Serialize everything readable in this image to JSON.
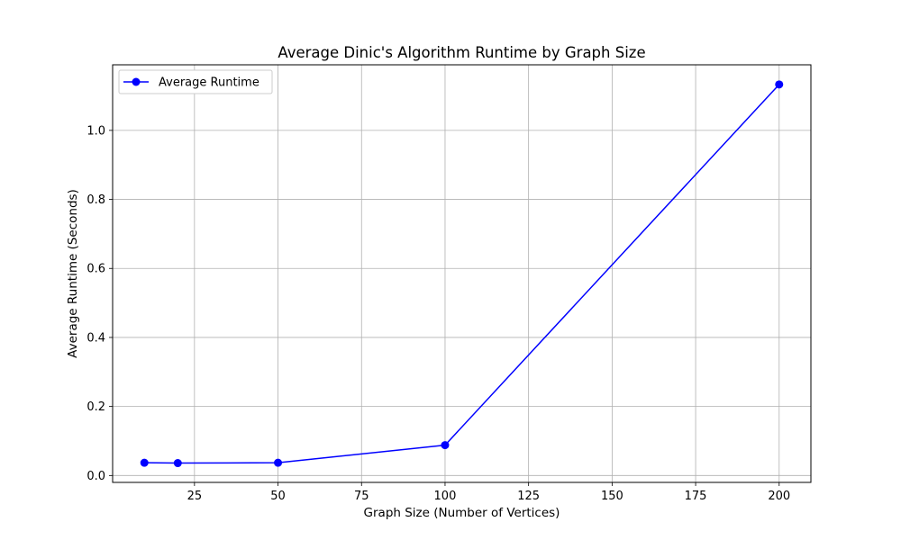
{
  "chart_data": {
    "type": "line",
    "title": "Average Dinic's Algorithm Runtime by Graph Size",
    "xlabel": "Graph Size (Number of Vertices)",
    "ylabel": "Average Runtime (Seconds)",
    "xlim": [
      0.5,
      209.5
    ],
    "ylim": [
      -0.02,
      1.19
    ],
    "xticks": [
      25,
      50,
      75,
      100,
      125,
      150,
      175,
      200
    ],
    "xtick_labels": [
      "25",
      "50",
      "75",
      "100",
      "125",
      "150",
      "175",
      "200"
    ],
    "yticks": [
      0.0,
      0.2,
      0.4,
      0.6,
      0.8,
      1.0
    ],
    "ytick_labels": [
      "0.0",
      "0.2",
      "0.4",
      "0.6",
      "0.8",
      "1.0"
    ],
    "grid": true,
    "legend_position": "top-left",
    "series": [
      {
        "name": "Average Runtime",
        "color": "#0000ff",
        "marker": "circle",
        "x": [
          10,
          20,
          50,
          100,
          200
        ],
        "y": [
          0.037,
          0.036,
          0.037,
          0.088,
          1.133
        ]
      }
    ]
  }
}
